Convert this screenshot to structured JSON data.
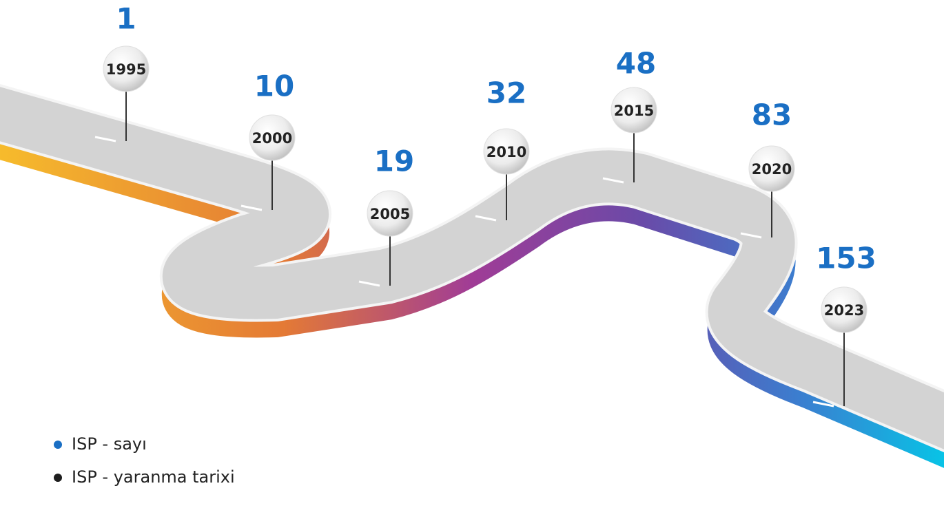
{
  "milestones": [
    {
      "count": 1,
      "year": "1995"
    },
    {
      "count": 10,
      "year": "2000"
    },
    {
      "count": 19,
      "year": "2005"
    },
    {
      "count": 32,
      "year": "2010"
    },
    {
      "count": 48,
      "year": "2015"
    },
    {
      "count": 83,
      "year": "2020"
    },
    {
      "count": 153,
      "year": "2023"
    }
  ],
  "number_color": "#1a6fc4",
  "legend": [
    {
      "label": "ISP - sayı",
      "color": "#1a6fc4"
    },
    {
      "label": "ISP - yaranma tarixi",
      "color": "#1e1e1e"
    }
  ]
}
